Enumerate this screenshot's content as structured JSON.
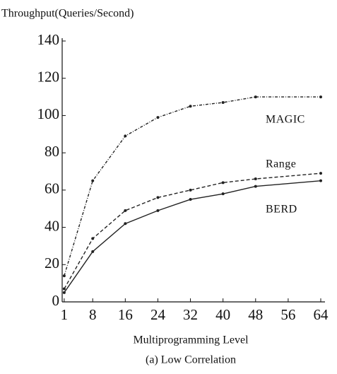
{
  "chart_data": {
    "type": "line",
    "ylabel": "Throughput(Queries/Second)",
    "xlabel": "Multiprogramming Level",
    "caption": "(a) Low Correlation",
    "x": [
      1,
      8,
      16,
      24,
      32,
      40,
      48,
      64
    ],
    "series": [
      {
        "name": "MAGIC",
        "color": "#222222",
        "dash": "4 2 1 2",
        "values": [
          14,
          65,
          89,
          99,
          105,
          107,
          110,
          110
        ]
      },
      {
        "name": "Range",
        "color": "#222222",
        "dash": "5 3",
        "values": [
          7,
          34,
          49,
          56,
          60,
          64,
          66,
          69
        ]
      },
      {
        "name": "BERD",
        "color": "#222222",
        "dash": "none",
        "values": [
          5,
          27,
          42,
          49,
          55,
          58,
          62,
          65
        ]
      }
    ],
    "xlim": [
      0.5,
      64
    ],
    "xticks": [
      1,
      8,
      16,
      24,
      32,
      40,
      48,
      56,
      64
    ],
    "ylim": [
      0,
      140
    ],
    "yticks": [
      0,
      20,
      40,
      60,
      80,
      100,
      120,
      140
    ]
  }
}
